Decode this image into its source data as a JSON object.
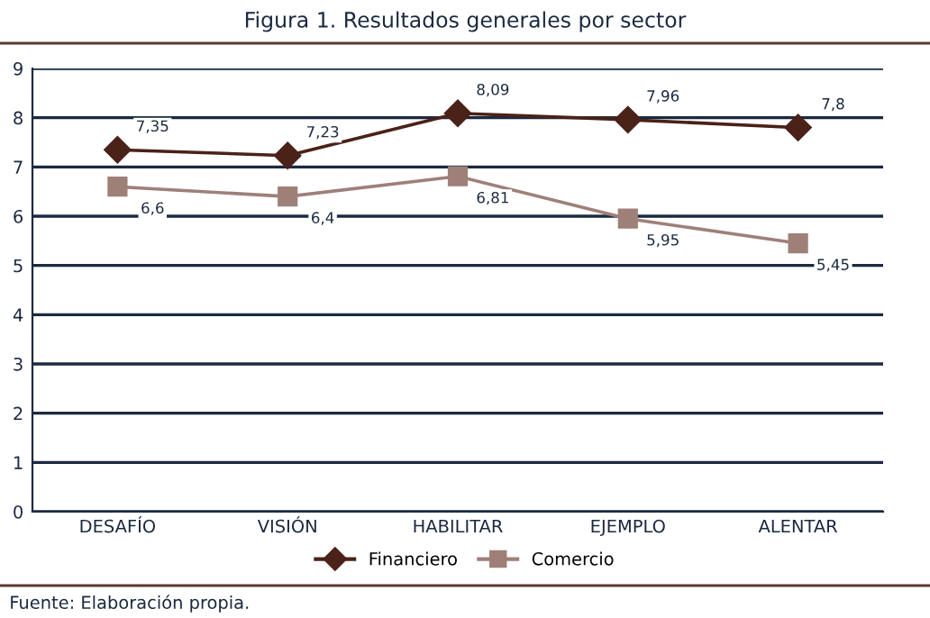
{
  "chart_data": {
    "type": "line",
    "title": "Figura 1. Resultados generales por sector",
    "categories": [
      "DESAFÍO",
      "VISIÓN",
      "HABILITAR",
      "EJEMPLO",
      "ALENTAR"
    ],
    "series": [
      {
        "name": "Financiero",
        "color": "#4a2218",
        "marker": "diamond",
        "values": [
          7.35,
          7.23,
          8.09,
          7.96,
          7.8
        ],
        "value_labels": [
          "7,35",
          "7,23",
          "8,09",
          "7,96",
          "7,8"
        ]
      },
      {
        "name": "Comercio",
        "color": "#9e8078",
        "marker": "square",
        "values": [
          6.6,
          6.4,
          6.81,
          5.95,
          5.45
        ],
        "value_labels": [
          "6,6",
          "6,4",
          "6,81",
          "5,95",
          "5,45"
        ]
      }
    ],
    "ylim": [
      0,
      9
    ],
    "yticks": [
      0,
      1,
      2,
      3,
      4,
      5,
      6,
      7,
      8,
      9
    ],
    "grid": "y",
    "legend": "bottom",
    "annotations": [
      "Fuente: Elaboración propia."
    ]
  }
}
